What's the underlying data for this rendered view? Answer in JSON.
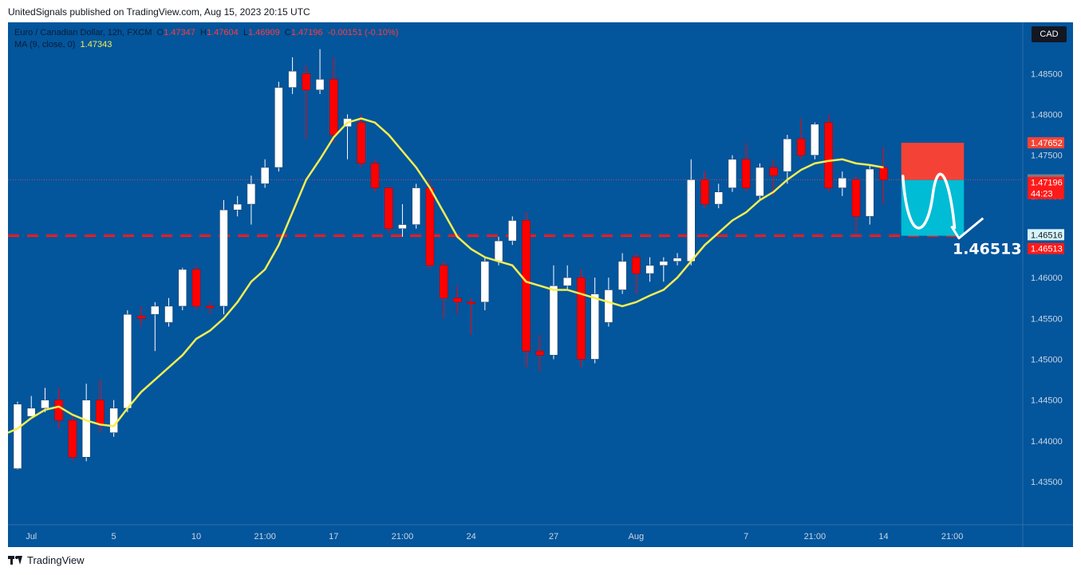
{
  "header": {
    "publisher_line": "UnitedSignals published on TradingView.com, Aug 15, 2023 20:15 UTC"
  },
  "legend": {
    "symbol": "Euro / Canadian Dollar, 12h, FXCM",
    "o_label": "O",
    "o_value": "1.47347",
    "h_label": "H",
    "h_value": "1.47604",
    "l_label": "L",
    "l_value": "1.46909",
    "c_label": "C",
    "c_value": "1.47196",
    "change": "-0.00151 (-0.10%)",
    "ma_label": "MA (9, close, 0)",
    "ma_value": "1.47343"
  },
  "currency_button": "CAD",
  "footer": {
    "brand": "TradingView"
  },
  "colors": {
    "background": "#03559c",
    "up": "#ffffff",
    "down": "#ff0000",
    "ma": "#f5ee4f",
    "target_line": "#ff1a1a",
    "stop_zone": "#f44336",
    "profit_zone": "#00bcd4"
  },
  "chart_data": {
    "type": "candlestick",
    "symbol": "Euro / Canadian Dollar",
    "timeframe": "12h",
    "y_range": [
      1.4305,
      1.4905
    ],
    "price_ticks": [
      "1.48500",
      "1.48000",
      "1.47500",
      "1.47000",
      "1.46500",
      "1.46000",
      "1.45500",
      "1.45000",
      "1.44500",
      "1.44000",
      "1.43500"
    ],
    "time_labels": [
      {
        "label": "Jul",
        "index": 1
      },
      {
        "label": "5",
        "index": 7
      },
      {
        "label": "10",
        "index": 13
      },
      {
        "label": "21:00",
        "index": 18
      },
      {
        "label": "17",
        "index": 23
      },
      {
        "label": "21:00",
        "index": 28
      },
      {
        "label": "24",
        "index": 33
      },
      {
        "label": "27",
        "index": 39
      },
      {
        "label": "Aug",
        "index": 45
      },
      {
        "label": "7",
        "index": 53
      },
      {
        "label": "21:00",
        "index": 58
      },
      {
        "label": "14",
        "index": 63
      },
      {
        "label": "21:00",
        "index": 68
      }
    ],
    "candles": [
      [
        1.4366,
        1.4445,
        1.4365,
        1.4448
      ],
      [
        1.443,
        1.444,
        1.443,
        1.4455
      ],
      [
        1.444,
        1.445,
        1.4435,
        1.4465
      ],
      [
        1.445,
        1.4425,
        1.4415,
        1.4465
      ],
      [
        1.4425,
        1.438,
        1.4375,
        1.443
      ],
      [
        1.438,
        1.445,
        1.4375,
        1.447
      ],
      [
        1.445,
        1.442,
        1.441,
        1.4475
      ],
      [
        1.441,
        1.444,
        1.4405,
        1.445
      ],
      [
        1.444,
        1.4555,
        1.4435,
        1.456
      ],
      [
        1.4553,
        1.455,
        1.454,
        1.4565
      ],
      [
        1.4555,
        1.4565,
        1.451,
        1.457
      ],
      [
        1.4545,
        1.4565,
        1.454,
        1.4575
      ],
      [
        1.4565,
        1.461,
        1.456,
        1.4612
      ],
      [
        1.461,
        1.4565,
        1.456,
        1.4615
      ],
      [
        1.4565,
        1.4563,
        1.4555,
        1.457
      ],
      [
        1.4565,
        1.4683,
        1.4555,
        1.4695
      ],
      [
        1.4683,
        1.469,
        1.4675,
        1.47
      ],
      [
        1.469,
        1.4715,
        1.4665,
        1.4725
      ],
      [
        1.4715,
        1.4735,
        1.471,
        1.4745
      ],
      [
        1.4735,
        1.4833,
        1.473,
        1.484
      ],
      [
        1.4833,
        1.4853,
        1.4825,
        1.487
      ],
      [
        1.485,
        1.483,
        1.477,
        1.486
      ],
      [
        1.483,
        1.4843,
        1.4825,
        1.488
      ],
      [
        1.4843,
        1.4775,
        1.4765,
        1.487
      ],
      [
        1.4785,
        1.4795,
        1.4745,
        1.48
      ],
      [
        1.479,
        1.474,
        1.4735,
        1.48
      ],
      [
        1.474,
        1.471,
        1.4705,
        1.4745
      ],
      [
        1.471,
        1.466,
        1.4655,
        1.471
      ],
      [
        1.466,
        1.4665,
        1.465,
        1.469
      ],
      [
        1.4665,
        1.471,
        1.466,
        1.4715
      ],
      [
        1.471,
        1.4615,
        1.461,
        1.472
      ],
      [
        1.4615,
        1.4575,
        1.455,
        1.462
      ],
      [
        1.4575,
        1.457,
        1.4555,
        1.459
      ],
      [
        1.457,
        1.4568,
        1.453,
        1.4575
      ],
      [
        1.457,
        1.462,
        1.456,
        1.4625
      ],
      [
        1.462,
        1.4645,
        1.4615,
        1.465
      ],
      [
        1.4645,
        1.467,
        1.464,
        1.4675
      ],
      [
        1.467,
        1.451,
        1.449,
        1.468
      ],
      [
        1.451,
        1.4505,
        1.4485,
        1.453
      ],
      [
        1.4505,
        1.459,
        1.45,
        1.4615
      ],
      [
        1.459,
        1.46,
        1.4585,
        1.4615
      ],
      [
        1.46,
        1.45,
        1.449,
        1.461
      ],
      [
        1.45,
        1.458,
        1.4495,
        1.46
      ],
      [
        1.4545,
        1.4585,
        1.454,
        1.46
      ],
      [
        1.4585,
        1.462,
        1.458,
        1.463
      ],
      [
        1.4625,
        1.4605,
        1.458,
        1.463
      ],
      [
        1.4605,
        1.4615,
        1.4595,
        1.4625
      ],
      [
        1.4615,
        1.462,
        1.4595,
        1.4625
      ],
      [
        1.462,
        1.4624,
        1.4615,
        1.463
      ],
      [
        1.462,
        1.472,
        1.4615,
        1.4745
      ],
      [
        1.472,
        1.469,
        1.4685,
        1.473
      ],
      [
        1.469,
        1.4705,
        1.4685,
        1.4715
      ],
      [
        1.471,
        1.4745,
        1.4705,
        1.475
      ],
      [
        1.4745,
        1.471,
        1.4705,
        1.4765
      ],
      [
        1.47,
        1.4735,
        1.4695,
        1.474
      ],
      [
        1.4735,
        1.4725,
        1.47,
        1.4745
      ],
      [
        1.473,
        1.477,
        1.4715,
        1.4775
      ],
      [
        1.477,
        1.475,
        1.4745,
        1.4795
      ],
      [
        1.475,
        1.4788,
        1.4745,
        1.479
      ],
      [
        1.479,
        1.471,
        1.4705,
        1.48
      ],
      [
        1.471,
        1.4722,
        1.47,
        1.473
      ],
      [
        1.472,
        1.4675,
        1.4655,
        1.4725
      ],
      [
        1.4675,
        1.4733,
        1.4665,
        1.4738
      ],
      [
        1.4735,
        1.472,
        1.469,
        1.476
      ]
    ],
    "moving_average": {
      "name": "MA (9, close, 0)",
      "values": [
        1.4415,
        1.4428,
        1.4438,
        1.4442,
        1.4432,
        1.4425,
        1.442,
        1.4418,
        1.444,
        1.446,
        1.4475,
        1.449,
        1.4505,
        1.4525,
        1.4535,
        1.455,
        1.457,
        1.4595,
        1.461,
        1.464,
        1.468,
        1.472,
        1.4745,
        1.4772,
        1.479,
        1.4795,
        1.479,
        1.4775,
        1.4755,
        1.4735,
        1.471,
        1.468,
        1.465,
        1.4635,
        1.4625,
        1.462,
        1.4615,
        1.4595,
        1.459,
        1.4585,
        1.4585,
        1.458,
        1.4575,
        1.457,
        1.4565,
        1.457,
        1.4578,
        1.4585,
        1.46,
        1.462,
        1.464,
        1.4655,
        1.467,
        1.468,
        1.4695,
        1.4705,
        1.472,
        1.4732,
        1.474,
        1.4743,
        1.4745,
        1.474,
        1.4738,
        1.4735
      ]
    },
    "annotations": {
      "target_level": 1.46513,
      "target_label": "1.46513",
      "stop_zone": [
        1.47196,
        1.47652
      ],
      "profit_zone": [
        1.46513,
        1.47196
      ],
      "zone_start_index": 64,
      "zone_end_index": 68.5
    },
    "price_badges": [
      {
        "price": 1.47652,
        "label": "1.47652",
        "color": "#f44336"
      },
      {
        "price": 1.47198,
        "label": "1.47198",
        "color": "#787b86"
      },
      {
        "price": 1.47196,
        "label": "1.47196",
        "sub": "44:23",
        "color": "#ff1a1a"
      },
      {
        "price": 1.46516,
        "label": "1.46516",
        "color": "#d6f4f8",
        "text_color": "#131722"
      },
      {
        "price": 1.46513,
        "label": "1.46513",
        "color": "#ff1a1a"
      }
    ]
  }
}
